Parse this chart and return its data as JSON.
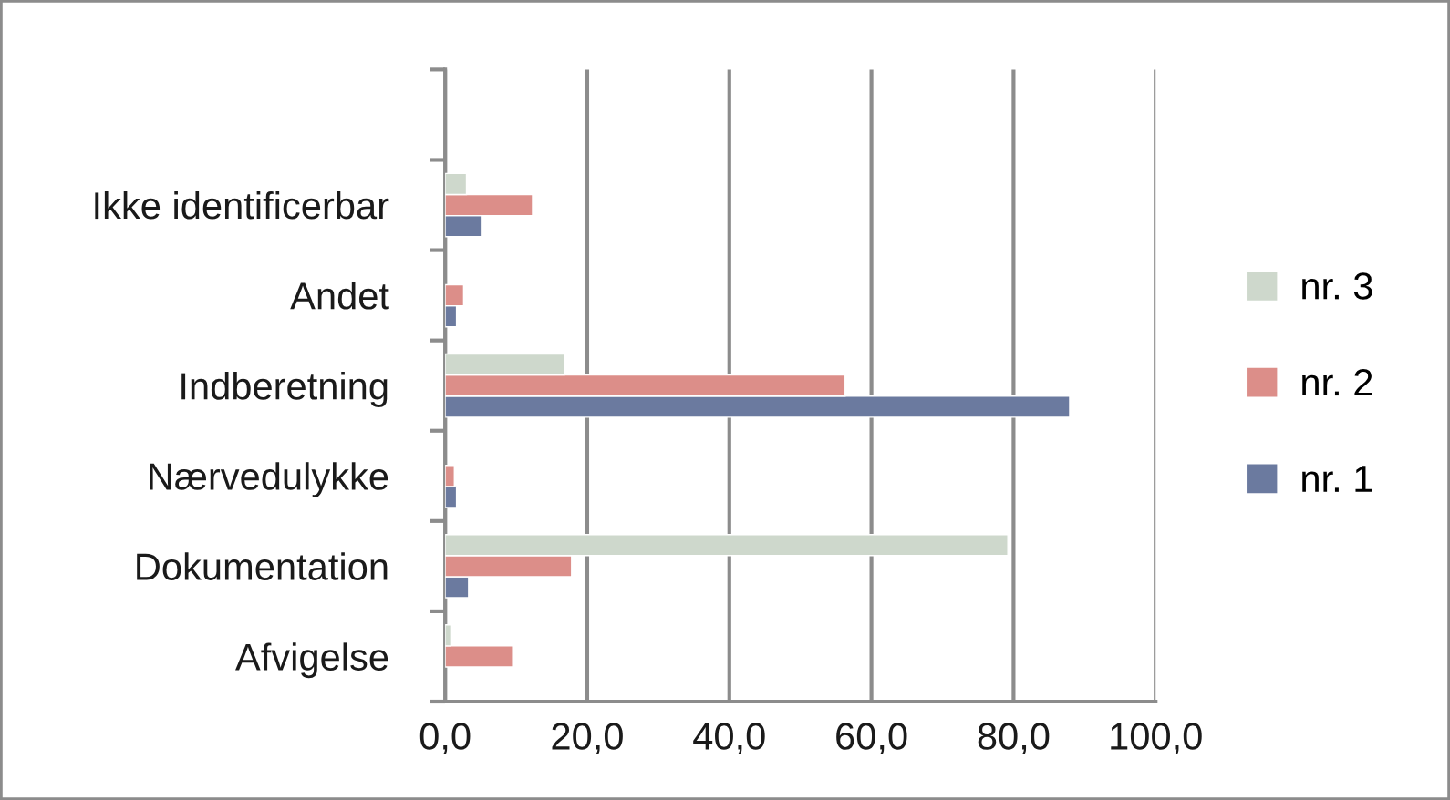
{
  "chart_data": {
    "type": "bar",
    "orientation": "horizontal",
    "categories": [
      null,
      "Ikke identificerbar",
      "Andet",
      "Indberetning",
      "Nærvedulykke",
      "Dokumentation",
      "Afvigelse"
    ],
    "series": [
      {
        "name": "nr. 1",
        "color": "#6b7a9f",
        "values": [
          null,
          5.1,
          1.6,
          87.9,
          1.6,
          3.3,
          null
        ]
      },
      {
        "name": "nr. 2",
        "color": "#dc8e89",
        "values": [
          null,
          12.3,
          2.6,
          56.3,
          1.3,
          17.8,
          9.5
        ]
      },
      {
        "name": "nr. 3",
        "color": "#ced8cc",
        "values": [
          null,
          3.0,
          null,
          16.8,
          null,
          79.2,
          0.8
        ]
      }
    ],
    "xlim": [
      0,
      100
    ],
    "xticks": [
      {
        "value": 0,
        "label": "0,0"
      },
      {
        "value": 20,
        "label": "20,0"
      },
      {
        "value": 40,
        "label": "40,0"
      },
      {
        "value": 60,
        "label": "60,0"
      },
      {
        "value": 80,
        "label": "80,0"
      },
      {
        "value": 100,
        "label": "100,0"
      }
    ],
    "grid": "x",
    "legend": "right"
  }
}
